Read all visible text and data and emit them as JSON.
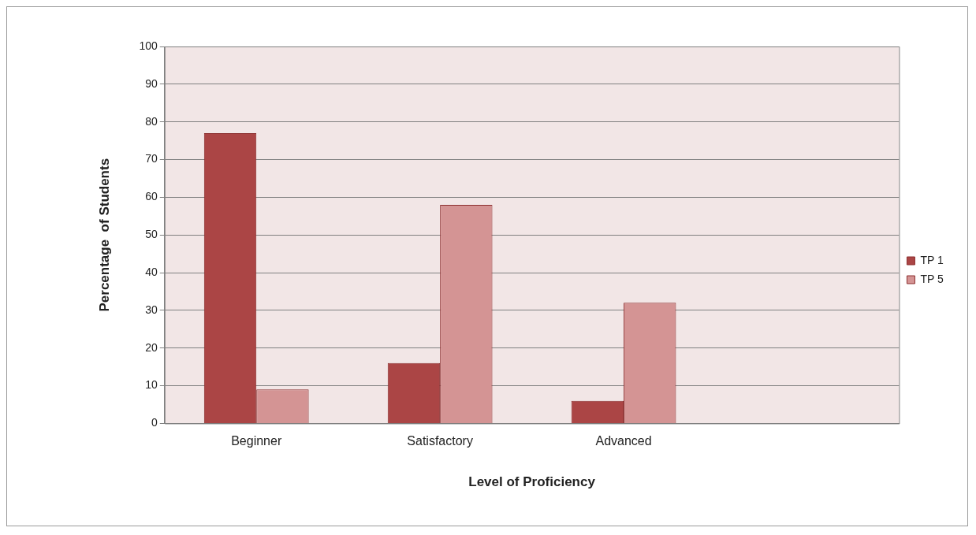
{
  "chart_data": {
    "type": "bar",
    "xlabel": "Level of Proficiency",
    "ylabel": "Percentage  of Students",
    "categories": [
      "Beginner",
      "Satisfactory",
      "Advanced",
      null
    ],
    "series": [
      {
        "name": "TP 1",
        "color": "#ab4545",
        "values": [
          77,
          16,
          6,
          null
        ]
      },
      {
        "name": "TP 5",
        "color": "#d49494",
        "values": [
          9,
          58,
          32,
          null
        ]
      }
    ],
    "ylim": [
      0,
      100
    ],
    "yticks": [
      0,
      10,
      20,
      30,
      40,
      50,
      60,
      70,
      80,
      90,
      100
    ],
    "grid": "y",
    "legend": "right"
  }
}
